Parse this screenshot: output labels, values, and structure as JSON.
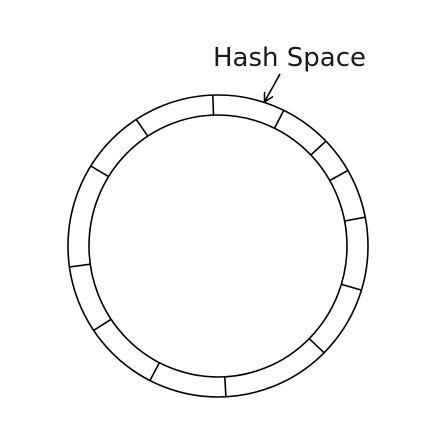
{
  "diagram": {
    "label": "Hash Space",
    "segment_count": 14,
    "stroke_color": "#000000",
    "background_color": "#ffffff"
  }
}
